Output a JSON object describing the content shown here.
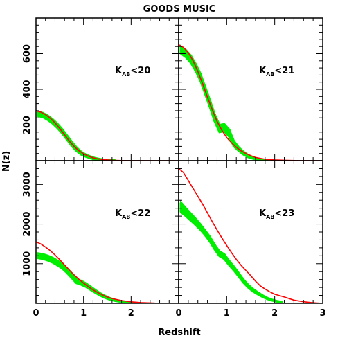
{
  "figure": {
    "title": "GOODS MUSIC",
    "xlabel": "Redshift",
    "ylabel": "N(z)"
  },
  "colors": {
    "model": "#ff0000",
    "observed": "#00ee00",
    "axes": "#000000"
  },
  "chart_data": [
    {
      "type": "line",
      "panel": "top-left",
      "label": {
        "main": "K",
        "sub": "AB",
        "rest": "<20"
      },
      "xlim": [
        0,
        3
      ],
      "ylim": [
        0,
        800
      ],
      "xticks": [],
      "yticks": [
        200,
        400,
        600
      ],
      "ytick_labels": [
        "200",
        "400",
        "600"
      ],
      "series": [
        {
          "role": "observed",
          "band": true,
          "x": [
            0.05,
            0.15,
            0.25,
            0.35,
            0.45,
            0.55,
            0.65,
            0.75,
            0.85,
            0.95,
            1.05,
            1.15,
            1.25,
            1.35,
            1.45,
            1.55,
            1.65
          ],
          "y": [
            262,
            255,
            240,
            220,
            195,
            165,
            130,
            95,
            65,
            42,
            28,
            18,
            10,
            6,
            3,
            2,
            1
          ],
          "err": [
            12,
            12,
            12,
            12,
            12,
            12,
            12,
            12,
            10,
            8,
            6,
            5,
            4,
            3,
            2,
            1,
            1
          ]
        },
        {
          "role": "model",
          "x": [
            0.0,
            0.1,
            0.2,
            0.3,
            0.4,
            0.5,
            0.6,
            0.7,
            0.8,
            0.9,
            1.0,
            1.1,
            1.2,
            1.3,
            1.4,
            1.5,
            1.6,
            1.8,
            2.0,
            2.2,
            2.5,
            3.0
          ],
          "y": [
            280,
            272,
            258,
            238,
            212,
            180,
            145,
            110,
            80,
            56,
            38,
            25,
            16,
            10,
            6,
            4,
            2,
            1,
            0.5,
            0.2,
            0,
            0
          ]
        }
      ]
    },
    {
      "type": "line",
      "panel": "top-right",
      "label": {
        "main": "K",
        "sub": "AB",
        "rest": "<21"
      },
      "xlim": [
        0,
        3
      ],
      "ylim": [
        0,
        800
      ],
      "xticks": [],
      "yticks": [],
      "series": [
        {
          "role": "observed",
          "band": true,
          "x": [
            0.05,
            0.15,
            0.25,
            0.35,
            0.45,
            0.55,
            0.65,
            0.75,
            0.85,
            0.95,
            1.05,
            1.15,
            1.25,
            1.35,
            1.45,
            1.55,
            1.65,
            1.75,
            1.85
          ],
          "y": [
            620,
            600,
            570,
            525,
            470,
            395,
            320,
            240,
            180,
            185,
            155,
            95,
            65,
            42,
            25,
            15,
            8,
            4,
            2
          ],
          "err": [
            20,
            20,
            20,
            20,
            20,
            20,
            20,
            20,
            20,
            20,
            20,
            15,
            10,
            8,
            6,
            4,
            3,
            2,
            1
          ]
        },
        {
          "role": "model",
          "x": [
            0.0,
            0.1,
            0.2,
            0.3,
            0.4,
            0.5,
            0.6,
            0.7,
            0.8,
            0.9,
            1.0,
            1.1,
            1.2,
            1.3,
            1.4,
            1.5,
            1.6,
            1.8,
            2.0,
            2.2,
            2.5,
            3.0
          ],
          "y": [
            650,
            635,
            605,
            560,
            500,
            430,
            355,
            285,
            220,
            170,
            130,
            100,
            75,
            55,
            40,
            28,
            18,
            8,
            4,
            2,
            0.5,
            0
          ]
        }
      ]
    },
    {
      "type": "line",
      "panel": "bottom-left",
      "label": {
        "main": "K",
        "sub": "AB",
        "rest": "<22"
      },
      "xlim": [
        0,
        3
      ],
      "ylim": [
        0,
        3600
      ],
      "xticks": [
        0,
        1,
        2
      ],
      "xtick_labels": [
        "0",
        "1",
        "2"
      ],
      "yticks": [
        1000,
        2000,
        3000
      ],
      "ytick_labels": [
        "1000",
        "2000",
        "3000"
      ],
      "series": [
        {
          "role": "observed",
          "band": true,
          "x": [
            0.05,
            0.15,
            0.25,
            0.35,
            0.45,
            0.55,
            0.65,
            0.75,
            0.85,
            0.95,
            1.05,
            1.15,
            1.25,
            1.35,
            1.45,
            1.55,
            1.65,
            1.75,
            1.85,
            1.95,
            2.05,
            2.15
          ],
          "y": [
            1200,
            1180,
            1140,
            1090,
            1020,
            940,
            830,
            700,
            560,
            520,
            460,
            380,
            300,
            225,
            165,
            115,
            80,
            55,
            35,
            22,
            12,
            6
          ],
          "err": [
            60,
            60,
            60,
            60,
            60,
            60,
            60,
            60,
            50,
            50,
            45,
            40,
            35,
            30,
            25,
            20,
            15,
            10,
            8,
            6,
            4,
            3
          ]
        },
        {
          "role": "model",
          "x": [
            0.0,
            0.1,
            0.2,
            0.3,
            0.4,
            0.5,
            0.6,
            0.7,
            0.8,
            0.9,
            1.0,
            1.1,
            1.2,
            1.3,
            1.4,
            1.5,
            1.6,
            1.8,
            2.0,
            2.2,
            2.5,
            3.0
          ],
          "y": [
            1550,
            1500,
            1420,
            1330,
            1220,
            1100,
            970,
            840,
            720,
            610,
            510,
            420,
            340,
            270,
            210,
            160,
            120,
            70,
            38,
            18,
            5,
            0
          ]
        }
      ]
    },
    {
      "type": "line",
      "panel": "bottom-right",
      "label": {
        "main": "K",
        "sub": "AB",
        "rest": "<23"
      },
      "xlim": [
        0,
        3
      ],
      "ylim": [
        0,
        3600
      ],
      "xticks": [
        0,
        1,
        2,
        3
      ],
      "xtick_labels": [
        "0",
        "1",
        "2",
        "3"
      ],
      "yticks": [],
      "series": [
        {
          "role": "observed",
          "band": true,
          "x": [
            0.05,
            0.15,
            0.25,
            0.35,
            0.45,
            0.55,
            0.65,
            0.75,
            0.85,
            0.95,
            1.05,
            1.15,
            1.25,
            1.35,
            1.45,
            1.55,
            1.65,
            1.75,
            1.85,
            1.95,
            2.05,
            2.15
          ],
          "y": [
            2420,
            2300,
            2180,
            2060,
            1930,
            1780,
            1620,
            1420,
            1250,
            1180,
            1020,
            880,
            720,
            560,
            430,
            330,
            250,
            180,
            120,
            80,
            50,
            30
          ],
          "err": [
            120,
            100,
            90,
            80,
            70,
            60,
            60,
            60,
            60,
            60,
            55,
            50,
            45,
            40,
            35,
            30,
            25,
            20,
            15,
            10,
            8,
            5
          ]
        },
        {
          "role": "model",
          "x": [
            0.0,
            0.1,
            0.2,
            0.3,
            0.4,
            0.5,
            0.6,
            0.7,
            0.8,
            0.9,
            1.0,
            1.1,
            1.2,
            1.3,
            1.4,
            1.5,
            1.6,
            1.7,
            1.8,
            1.9,
            2.0,
            2.2,
            2.4,
            2.6,
            2.8,
            3.0
          ],
          "y": [
            3400,
            3300,
            3100,
            2900,
            2700,
            2500,
            2280,
            2060,
            1850,
            1650,
            1460,
            1280,
            1110,
            960,
            830,
            700,
            560,
            440,
            360,
            290,
            230,
            160,
            80,
            40,
            15,
            0
          ]
        }
      ]
    }
  ]
}
